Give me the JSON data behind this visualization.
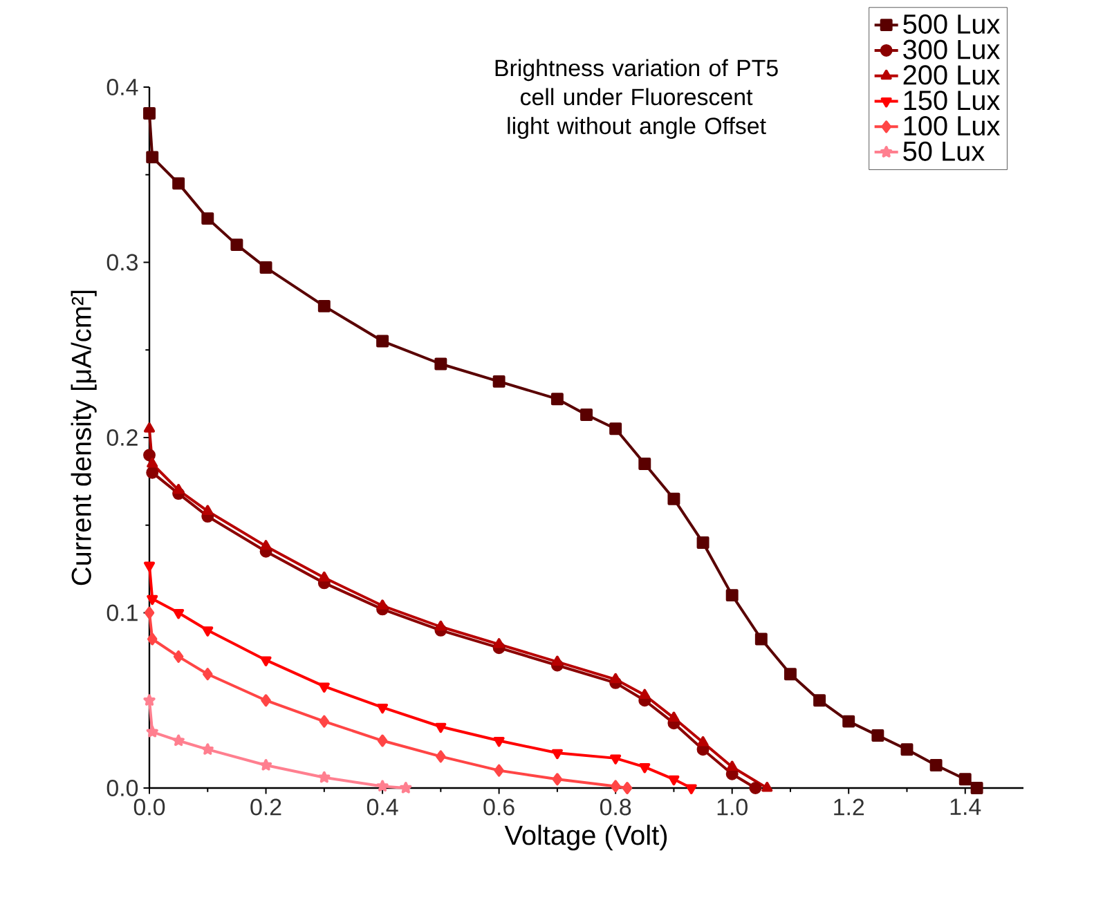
{
  "chart_data": {
    "type": "line",
    "title": "Brightness variation of PT5 cell under Fluorescent light without angle Offset",
    "xlabel": "Voltage (Volt)",
    "ylabel": "Current density [μA/cm²]",
    "xlim": [
      0,
      1.5
    ],
    "ylim": [
      0,
      0.4
    ],
    "xticks": [
      {
        "value": 0,
        "label": "0.0"
      },
      0.2,
      0.4,
      0.6,
      0.8,
      {
        "value": 1,
        "label": "1.0"
      },
      1.2,
      1.4
    ],
    "yticks": [
      {
        "value": 0,
        "label": "0.0"
      },
      0.1,
      0.2,
      0.3,
      0.4
    ],
    "legend": "top right",
    "grid": false,
    "line_style": "solid",
    "series": [
      {
        "name": "500 Lux",
        "color": "#5a0000",
        "marker": "square",
        "x": [
          0,
          0.005,
          0.05,
          0.1,
          0.15,
          0.2,
          0.3,
          0.4,
          0.5,
          0.6,
          0.7,
          0.75,
          0.8,
          0.85,
          0.9,
          0.95,
          1.0,
          1.05,
          1.1,
          1.15,
          1.2,
          1.25,
          1.3,
          1.35,
          1.4,
          1.42
        ],
        "values": [
          0.385,
          0.36,
          0.345,
          0.325,
          0.31,
          0.297,
          0.275,
          0.255,
          0.242,
          0.232,
          0.222,
          0.213,
          0.205,
          0.185,
          0.165,
          0.14,
          0.11,
          0.085,
          0.065,
          0.05,
          0.038,
          0.03,
          0.022,
          0.013,
          0.005,
          0
        ]
      },
      {
        "name": "300 Lux",
        "color": "#8b0000",
        "marker": "circle",
        "x": [
          0,
          0.005,
          0.05,
          0.1,
          0.2,
          0.3,
          0.4,
          0.5,
          0.6,
          0.7,
          0.8,
          0.85,
          0.9,
          0.95,
          1.0,
          1.04
        ],
        "values": [
          0.19,
          0.18,
          0.168,
          0.155,
          0.135,
          0.117,
          0.102,
          0.09,
          0.08,
          0.07,
          0.06,
          0.05,
          0.037,
          0.022,
          0.008,
          0
        ]
      },
      {
        "name": "200 Lux",
        "color": "#b80000",
        "marker": "triangle",
        "x": [
          0,
          0.005,
          0.05,
          0.1,
          0.2,
          0.3,
          0.4,
          0.5,
          0.6,
          0.7,
          0.8,
          0.85,
          0.9,
          0.95,
          1.0,
          1.06
        ],
        "values": [
          0.205,
          0.185,
          0.17,
          0.158,
          0.138,
          0.12,
          0.104,
          0.092,
          0.082,
          0.072,
          0.062,
          0.053,
          0.04,
          0.026,
          0.012,
          0
        ]
      },
      {
        "name": "150 Lux",
        "color": "#ff0000",
        "marker": "triangle-down",
        "x": [
          0,
          0.005,
          0.05,
          0.1,
          0.2,
          0.3,
          0.4,
          0.5,
          0.6,
          0.7,
          0.8,
          0.85,
          0.9,
          0.93
        ],
        "values": [
          0.127,
          0.108,
          0.1,
          0.09,
          0.073,
          0.058,
          0.046,
          0.035,
          0.027,
          0.02,
          0.017,
          0.012,
          0.005,
          0
        ]
      },
      {
        "name": "100 Lux",
        "color": "#ff4545",
        "marker": "diamond",
        "x": [
          0,
          0.005,
          0.05,
          0.1,
          0.2,
          0.3,
          0.4,
          0.5,
          0.6,
          0.7,
          0.8,
          0.82
        ],
        "values": [
          0.1,
          0.085,
          0.075,
          0.065,
          0.05,
          0.038,
          0.027,
          0.018,
          0.01,
          0.005,
          0.001,
          0
        ]
      },
      {
        "name": "50 Lux",
        "color": "#ff7f8f",
        "marker": "star",
        "x": [
          0,
          0.005,
          0.05,
          0.1,
          0.2,
          0.3,
          0.4,
          0.44
        ],
        "values": [
          0.05,
          0.032,
          0.027,
          0.022,
          0.013,
          0.006,
          0.001,
          0
        ]
      }
    ]
  }
}
